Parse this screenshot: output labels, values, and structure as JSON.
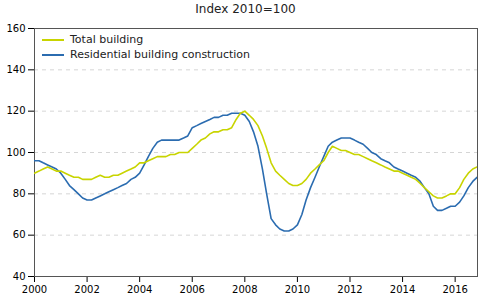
{
  "chart_data": {
    "type": "line",
    "title": "Index 2010=100",
    "x": [
      2000.0,
      2000.17,
      2000.33,
      2000.5,
      2000.67,
      2000.83,
      2001.0,
      2001.17,
      2001.33,
      2001.5,
      2001.67,
      2001.83,
      2002.0,
      2002.17,
      2002.33,
      2002.5,
      2002.67,
      2002.83,
      2003.0,
      2003.17,
      2003.33,
      2003.5,
      2003.67,
      2003.83,
      2004.0,
      2004.17,
      2004.33,
      2004.5,
      2004.67,
      2004.83,
      2005.0,
      2005.17,
      2005.33,
      2005.5,
      2005.67,
      2005.83,
      2006.0,
      2006.17,
      2006.33,
      2006.5,
      2006.67,
      2006.83,
      2007.0,
      2007.17,
      2007.33,
      2007.5,
      2007.67,
      2007.83,
      2008.0,
      2008.17,
      2008.33,
      2008.5,
      2008.67,
      2008.83,
      2009.0,
      2009.17,
      2009.33,
      2009.5,
      2009.67,
      2009.83,
      2010.0,
      2010.17,
      2010.33,
      2010.5,
      2010.67,
      2010.83,
      2011.0,
      2011.17,
      2011.33,
      2011.5,
      2011.67,
      2011.83,
      2012.0,
      2012.17,
      2012.33,
      2012.5,
      2012.67,
      2012.83,
      2013.0,
      2013.17,
      2013.33,
      2013.5,
      2013.67,
      2013.83,
      2014.0,
      2014.17,
      2014.33,
      2014.5,
      2014.67,
      2014.83,
      2015.0,
      2015.17,
      2015.33,
      2015.5,
      2015.67,
      2015.83,
      2016.0,
      2016.17,
      2016.33,
      2016.5,
      2016.67,
      2016.83
    ],
    "series": [
      {
        "name": "Total building",
        "color": "#c8d400",
        "values": [
          90,
          91,
          92,
          93,
          92,
          91,
          91,
          90,
          89,
          88,
          88,
          87,
          87,
          87,
          88,
          89,
          88,
          88,
          89,
          89,
          90,
          91,
          92,
          93,
          95,
          95,
          96,
          97,
          98,
          98,
          98,
          99,
          99,
          100,
          100,
          100,
          102,
          104,
          106,
          107,
          109,
          110,
          110,
          111,
          111,
          112,
          116,
          119,
          120,
          118,
          116,
          113,
          108,
          102,
          95,
          91,
          89,
          87,
          85,
          84,
          84,
          85,
          87,
          90,
          92,
          94,
          96,
          100,
          103,
          102,
          101,
          101,
          100,
          99,
          99,
          98,
          97,
          96,
          95,
          94,
          93,
          92,
          91,
          91,
          90,
          89,
          88,
          87,
          85,
          83,
          81,
          79,
          78,
          78,
          79,
          80,
          80,
          83,
          87,
          90,
          92,
          93
        ]
      },
      {
        "name": "Residential building construction",
        "color": "#2b6cb0",
        "values": [
          96,
          96,
          95,
          94,
          93,
          92,
          90,
          87,
          84,
          82,
          80,
          78,
          77,
          77,
          78,
          79,
          80,
          81,
          82,
          83,
          84,
          85,
          87,
          88,
          90,
          94,
          98,
          102,
          105,
          106,
          106,
          106,
          106,
          106,
          107,
          108,
          112,
          113,
          114,
          115,
          116,
          117,
          117,
          118,
          118,
          119,
          119,
          119,
          118,
          115,
          110,
          103,
          92,
          80,
          68,
          65,
          63,
          62,
          62,
          63,
          65,
          70,
          77,
          83,
          88,
          93,
          98,
          103,
          105,
          106,
          107,
          107,
          107,
          106,
          105,
          104,
          102,
          100,
          99,
          97,
          96,
          95,
          93,
          92,
          91,
          90,
          89,
          88,
          86,
          83,
          80,
          74,
          72,
          72,
          73,
          74,
          74,
          76,
          79,
          83,
          86,
          88
        ]
      }
    ],
    "xlim": [
      2000,
      2016.85
    ],
    "ylim": [
      40,
      160
    ],
    "xticks": [
      2000,
      2002,
      2004,
      2006,
      2008,
      2010,
      2012,
      2014,
      2016
    ],
    "yticks": [
      40,
      60,
      80,
      100,
      120,
      140,
      160
    ],
    "grid": true,
    "legend": "upper left"
  }
}
